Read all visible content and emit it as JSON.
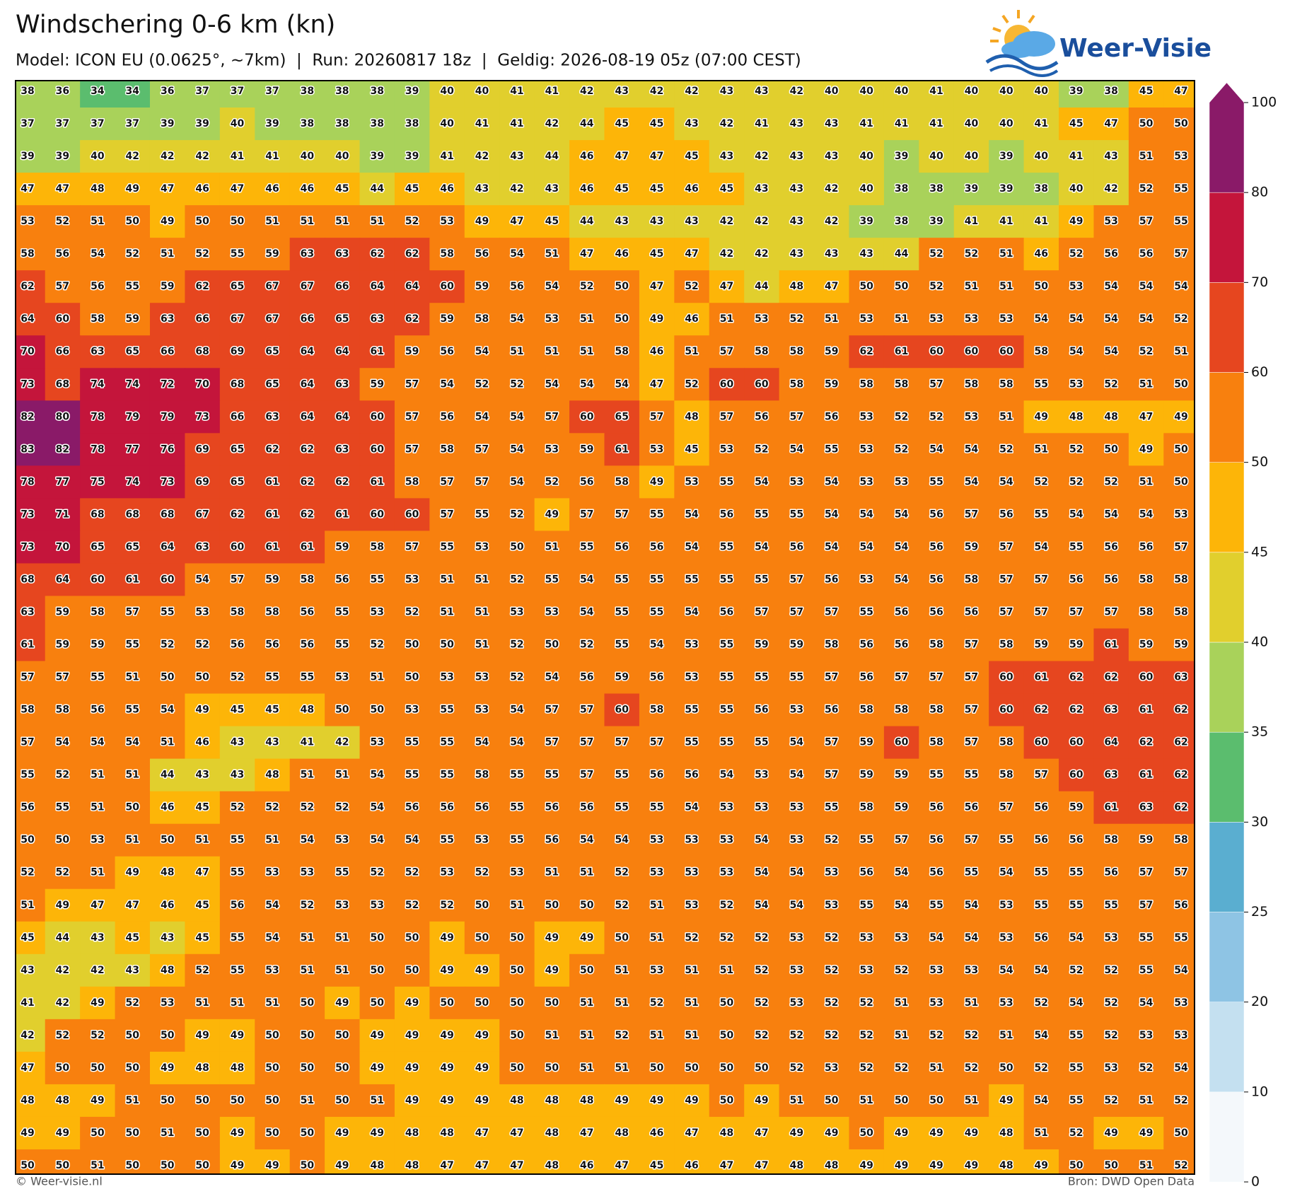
{
  "header": {
    "title": "Windschering 0-6 km (kn)",
    "subtitle": "Model: ICON EU (0.0625°, ~7km)  |  Run: 20260817 18z  |  Geldig: 2026-08-19 05z (07:00 CEST)",
    "logo": "Weer-Visie"
  },
  "map": {
    "rows": [
      [
        38,
        36,
        34,
        34,
        36,
        37,
        37,
        37,
        38,
        38,
        38,
        39,
        40,
        40,
        41,
        41,
        42,
        43,
        42,
        42,
        43,
        43,
        42,
        40,
        40,
        40,
        41,
        40,
        40,
        40,
        39,
        38,
        45,
        47
      ],
      [
        37,
        37,
        37,
        37,
        39,
        39,
        40,
        39,
        38,
        38,
        38,
        38,
        40,
        41,
        41,
        42,
        44,
        45,
        45,
        43,
        42,
        41,
        43,
        43,
        41,
        41,
        41,
        40,
        40,
        41,
        45,
        47,
        50,
        50
      ],
      [
        39,
        39,
        40,
        42,
        42,
        42,
        41,
        41,
        40,
        40,
        39,
        39,
        41,
        42,
        43,
        44,
        46,
        47,
        47,
        45,
        43,
        42,
        43,
        43,
        40,
        39,
        40,
        40,
        39,
        40,
        41,
        43,
        51,
        53
      ],
      [
        47,
        47,
        48,
        49,
        47,
        46,
        47,
        46,
        46,
        45,
        44,
        45,
        46,
        43,
        42,
        43,
        46,
        45,
        45,
        46,
        45,
        43,
        43,
        42,
        40,
        38,
        38,
        39,
        39,
        38,
        40,
        42,
        52,
        55
      ],
      [
        53,
        52,
        51,
        50,
        49,
        50,
        50,
        51,
        51,
        51,
        51,
        52,
        53,
        49,
        47,
        45,
        44,
        43,
        43,
        43,
        42,
        42,
        43,
        42,
        39,
        38,
        39,
        41,
        41,
        41,
        49,
        53,
        57,
        55
      ],
      [
        58,
        56,
        54,
        52,
        51,
        52,
        55,
        59,
        63,
        63,
        62,
        62,
        58,
        56,
        54,
        51,
        47,
        46,
        45,
        47,
        42,
        42,
        43,
        43,
        43,
        44,
        52,
        52,
        51,
        46,
        52,
        56,
        56,
        57
      ],
      [
        62,
        57,
        56,
        55,
        59,
        62,
        65,
        67,
        67,
        66,
        64,
        64,
        60,
        59,
        56,
        54,
        52,
        50,
        47,
        52,
        47,
        44,
        48,
        47,
        50,
        50,
        52,
        51,
        51,
        50,
        53,
        54,
        54,
        54
      ],
      [
        64,
        60,
        58,
        59,
        63,
        66,
        67,
        67,
        66,
        65,
        63,
        62,
        59,
        58,
        54,
        53,
        51,
        50,
        49,
        46,
        51,
        53,
        52,
        51,
        53,
        51,
        53,
        53,
        53,
        54,
        54,
        54,
        54,
        52
      ],
      [
        70,
        66,
        63,
        65,
        66,
        68,
        69,
        65,
        64,
        64,
        61,
        59,
        56,
        54,
        51,
        51,
        51,
        58,
        46,
        51,
        57,
        58,
        58,
        59,
        62,
        61,
        60,
        60,
        60,
        58,
        54,
        54,
        52,
        51
      ],
      [
        73,
        68,
        74,
        74,
        72,
        70,
        68,
        65,
        64,
        63,
        59,
        57,
        54,
        52,
        52,
        54,
        54,
        54,
        47,
        52,
        60,
        60,
        58,
        59,
        58,
        58,
        57,
        58,
        58,
        55,
        53,
        52,
        51,
        50
      ],
      [
        82,
        80,
        78,
        79,
        79,
        73,
        66,
        63,
        64,
        64,
        60,
        57,
        56,
        54,
        54,
        57,
        60,
        65,
        57,
        48,
        57,
        56,
        57,
        56,
        53,
        52,
        52,
        53,
        51,
        49,
        48,
        48,
        47,
        49
      ],
      [
        83,
        82,
        78,
        77,
        76,
        69,
        65,
        62,
        62,
        63,
        60,
        57,
        58,
        57,
        54,
        53,
        59,
        61,
        53,
        45,
        53,
        52,
        54,
        55,
        53,
        52,
        54,
        54,
        52,
        51,
        52,
        50,
        49,
        50
      ],
      [
        78,
        77,
        75,
        74,
        73,
        69,
        65,
        61,
        62,
        62,
        61,
        58,
        57,
        57,
        54,
        52,
        56,
        58,
        49,
        53,
        55,
        54,
        53,
        54,
        53,
        53,
        55,
        54,
        54,
        52,
        52,
        52,
        51,
        50
      ],
      [
        73,
        71,
        68,
        68,
        68,
        67,
        62,
        61,
        62,
        61,
        60,
        60,
        57,
        55,
        52,
        49,
        57,
        57,
        55,
        54,
        56,
        55,
        55,
        54,
        54,
        54,
        56,
        57,
        56,
        55,
        54,
        54,
        54,
        53
      ],
      [
        73,
        70,
        65,
        65,
        64,
        63,
        60,
        61,
        61,
        59,
        58,
        57,
        55,
        53,
        50,
        51,
        55,
        56,
        56,
        54,
        55,
        54,
        56,
        54,
        54,
        54,
        56,
        59,
        57,
        54,
        55,
        56,
        56,
        57
      ],
      [
        68,
        64,
        60,
        61,
        60,
        54,
        57,
        59,
        58,
        56,
        55,
        53,
        51,
        51,
        52,
        55,
        54,
        55,
        55,
        55,
        55,
        55,
        57,
        56,
        53,
        54,
        56,
        58,
        57,
        57,
        56,
        56,
        58,
        58
      ],
      [
        63,
        59,
        58,
        57,
        55,
        53,
        58,
        58,
        56,
        55,
        53,
        52,
        51,
        51,
        53,
        53,
        54,
        55,
        55,
        54,
        56,
        57,
        57,
        57,
        55,
        56,
        56,
        56,
        57,
        57,
        57,
        57,
        58,
        58
      ],
      [
        61,
        59,
        59,
        55,
        52,
        52,
        56,
        56,
        56,
        55,
        52,
        50,
        50,
        51,
        52,
        50,
        52,
        55,
        54,
        53,
        55,
        59,
        59,
        58,
        56,
        56,
        58,
        57,
        58,
        59,
        59,
        61,
        59,
        59
      ],
      [
        57,
        57,
        55,
        51,
        50,
        50,
        52,
        55,
        55,
        53,
        51,
        50,
        53,
        53,
        52,
        54,
        56,
        59,
        56,
        53,
        55,
        55,
        55,
        57,
        56,
        57,
        57,
        57,
        60,
        61,
        62,
        62,
        60,
        63
      ],
      [
        58,
        58,
        56,
        55,
        54,
        49,
        45,
        45,
        48,
        50,
        50,
        53,
        55,
        53,
        54,
        57,
        57,
        60,
        58,
        55,
        55,
        56,
        53,
        56,
        58,
        58,
        58,
        57,
        60,
        62,
        62,
        63,
        61,
        62
      ],
      [
        57,
        54,
        54,
        54,
        51,
        46,
        43,
        43,
        41,
        42,
        53,
        55,
        55,
        54,
        54,
        57,
        57,
        57,
        57,
        55,
        55,
        55,
        54,
        57,
        59,
        60,
        58,
        57,
        58,
        60,
        60,
        64,
        62,
        62
      ],
      [
        55,
        52,
        51,
        51,
        44,
        43,
        43,
        48,
        51,
        51,
        54,
        55,
        55,
        58,
        55,
        55,
        57,
        55,
        56,
        56,
        54,
        53,
        54,
        57,
        59,
        59,
        55,
        55,
        58,
        57,
        60,
        63,
        61,
        62
      ],
      [
        56,
        55,
        51,
        50,
        46,
        45,
        52,
        52,
        52,
        52,
        54,
        56,
        56,
        56,
        55,
        56,
        56,
        55,
        55,
        54,
        53,
        53,
        53,
        55,
        58,
        59,
        56,
        56,
        57,
        56,
        59,
        61,
        63,
        62
      ],
      [
        50,
        50,
        53,
        51,
        50,
        51,
        55,
        51,
        54,
        53,
        54,
        54,
        55,
        53,
        55,
        56,
        54,
        54,
        53,
        53,
        53,
        54,
        53,
        52,
        55,
        57,
        56,
        57,
        55,
        56,
        56,
        58,
        59,
        58
      ],
      [
        52,
        52,
        51,
        49,
        48,
        47,
        55,
        53,
        53,
        55,
        52,
        52,
        53,
        52,
        53,
        51,
        51,
        52,
        53,
        53,
        53,
        54,
        54,
        53,
        56,
        54,
        56,
        55,
        54,
        55,
        55,
        56,
        57,
        57
      ],
      [
        51,
        49,
        47,
        47,
        46,
        45,
        56,
        54,
        52,
        53,
        53,
        52,
        52,
        50,
        51,
        50,
        50,
        52,
        51,
        53,
        52,
        54,
        54,
        53,
        55,
        54,
        55,
        54,
        53,
        55,
        55,
        55,
        57,
        56
      ],
      [
        45,
        44,
        43,
        45,
        43,
        45,
        55,
        54,
        51,
        51,
        50,
        50,
        49,
        50,
        50,
        49,
        49,
        50,
        51,
        52,
        52,
        52,
        53,
        52,
        53,
        53,
        54,
        54,
        53,
        56,
        54,
        53,
        55,
        55
      ],
      [
        43,
        42,
        42,
        43,
        48,
        52,
        55,
        53,
        51,
        51,
        50,
        50,
        49,
        49,
        50,
        49,
        50,
        51,
        53,
        51,
        51,
        52,
        53,
        52,
        53,
        52,
        53,
        53,
        54,
        54,
        52,
        52,
        55,
        54
      ],
      [
        41,
        42,
        49,
        52,
        53,
        51,
        51,
        51,
        50,
        49,
        50,
        49,
        50,
        50,
        50,
        50,
        51,
        51,
        52,
        51,
        50,
        52,
        53,
        52,
        52,
        51,
        53,
        51,
        53,
        52,
        54,
        52,
        54,
        53
      ],
      [
        42,
        52,
        52,
        50,
        50,
        49,
        49,
        50,
        50,
        50,
        49,
        49,
        49,
        49,
        50,
        51,
        51,
        52,
        51,
        51,
        50,
        52,
        52,
        52,
        52,
        51,
        52,
        52,
        51,
        54,
        55,
        52,
        53,
        53
      ],
      [
        47,
        50,
        50,
        50,
        49,
        48,
        48,
        50,
        50,
        50,
        49,
        49,
        49,
        49,
        50,
        50,
        51,
        51,
        50,
        50,
        50,
        50,
        52,
        53,
        52,
        52,
        51,
        52,
        50,
        52,
        55,
        53,
        52,
        54
      ],
      [
        48,
        48,
        49,
        51,
        50,
        50,
        50,
        50,
        51,
        50,
        51,
        49,
        49,
        49,
        48,
        48,
        48,
        49,
        49,
        49,
        50,
        49,
        51,
        50,
        51,
        50,
        50,
        51,
        49,
        54,
        55,
        52,
        51,
        52
      ],
      [
        49,
        49,
        50,
        50,
        51,
        50,
        49,
        50,
        50,
        49,
        49,
        48,
        48,
        47,
        47,
        48,
        47,
        48,
        46,
        47,
        48,
        47,
        49,
        49,
        50,
        49,
        49,
        49,
        48,
        51,
        52,
        49,
        49,
        50
      ],
      [
        50,
        50,
        51,
        50,
        50,
        50,
        49,
        49,
        50,
        49,
        48,
        48,
        47,
        47,
        47,
        48,
        46,
        47,
        45,
        46,
        47,
        47,
        48,
        48,
        49,
        49,
        49,
        49,
        48,
        49,
        50,
        50,
        51,
        52
      ]
    ]
  },
  "colorbar": {
    "levels": [
      0,
      10,
      20,
      25,
      30,
      35,
      40,
      45,
      50,
      60,
      70,
      80,
      100
    ],
    "colors": [
      "#f4f8fb",
      "#c4e0f0",
      "#8ec4e4",
      "#5aaed0",
      "#5bbd6e",
      "#a9d25a",
      "#e1cf2d",
      "#fdb508",
      "#f8800e",
      "#e6461f",
      "#c4153b",
      "#8a1a68"
    ]
  },
  "footer": {
    "left": "© Weer-visie.nl",
    "right": "Bron: DWD Open Data"
  }
}
